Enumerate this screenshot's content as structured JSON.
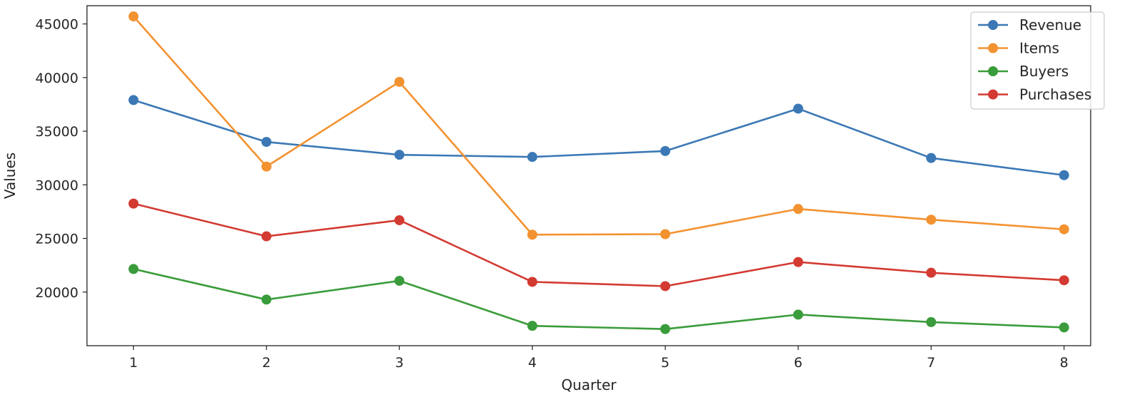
{
  "chart_data": {
    "type": "line",
    "title": "",
    "xlabel": "Quarter",
    "ylabel": "Values",
    "x": [
      1,
      2,
      3,
      4,
      5,
      6,
      7,
      8
    ],
    "xlim": [
      0.65,
      8.2
    ],
    "ylim": [
      15000,
      46700
    ],
    "yticks": [
      20000,
      25000,
      30000,
      35000,
      40000,
      45000
    ],
    "grid": false,
    "legend_position": "top-right",
    "series": [
      {
        "name": "Revenue",
        "color": "#3b78b5",
        "values": [
          37900,
          34000,
          32800,
          32600,
          33150,
          37100,
          32500,
          30900
        ]
      },
      {
        "name": "Items",
        "color": "#f39230",
        "values": [
          45700,
          31700,
          39600,
          25350,
          25400,
          27750,
          26750,
          25850
        ]
      },
      {
        "name": "Buyers",
        "color": "#3a9c3a",
        "values": [
          22150,
          19300,
          21050,
          16850,
          16550,
          17900,
          17200,
          16700
        ]
      },
      {
        "name": "Purchases",
        "color": "#d33a32",
        "values": [
          28250,
          25200,
          26700,
          20950,
          20550,
          22800,
          21800,
          21100
        ]
      }
    ]
  }
}
